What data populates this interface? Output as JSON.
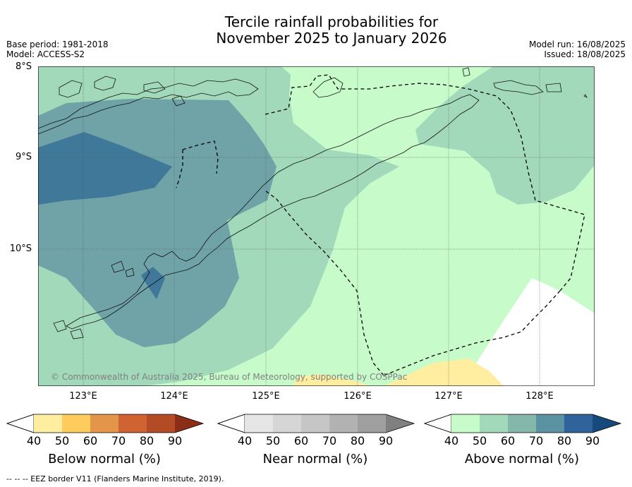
{
  "title": {
    "line1": "Tercile rainfall probabilities for",
    "line2": "November 2025 to January 2026"
  },
  "meta": {
    "base_period": "Base period: 1981-2018",
    "model": "Model: ACCESS-S2",
    "model_run": "Model run: 16/08/2025",
    "issued": "Issued: 18/08/2025"
  },
  "map": {
    "lat_labels": [
      "8°S",
      "9°S",
      "10°S"
    ],
    "lon_labels": [
      "123°E",
      "124°E",
      "125°E",
      "126°E",
      "127°E",
      "128°E"
    ],
    "copyright": "© Commonwealth of Australia 2025, Bureau of Meteorology, supported by COSPPac"
  },
  "colorbars": {
    "below": {
      "title": "Below normal (%)",
      "ticks": [
        "40",
        "50",
        "60",
        "70",
        "80",
        "90"
      ],
      "colors": [
        "#ffeda0",
        "#fecc5c",
        "#e3954a",
        "#cf6332",
        "#b34b27",
        "#8c2d17"
      ]
    },
    "near": {
      "title": "Near normal (%)",
      "ticks": [
        "40",
        "50",
        "60",
        "70",
        "80",
        "90"
      ],
      "colors": [
        "#e5e5e5",
        "#d6d6d6",
        "#c6c6c6",
        "#b2b2b2",
        "#9f9f9f",
        "#808080"
      ]
    },
    "above": {
      "title": "Above normal (%)",
      "ticks": [
        "40",
        "50",
        "60",
        "70",
        "80",
        "90"
      ],
      "colors": [
        "#c7fcca",
        "#a2d9bb",
        "#84b7aa",
        "#5b92a1",
        "#30639a",
        "#174a7c"
      ]
    }
  },
  "footnote": "--  --  -- EEZ border V11 (Flanders Marine Institute, 2019)."
}
